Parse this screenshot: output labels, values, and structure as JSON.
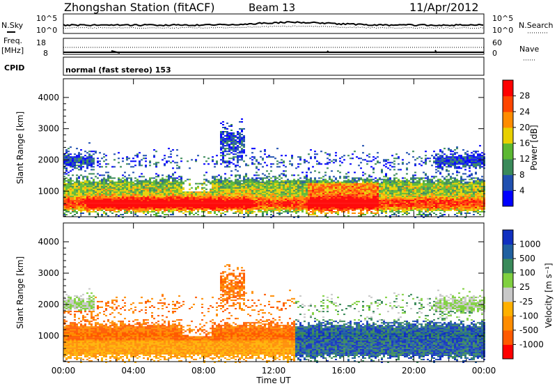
{
  "header": {
    "station": "Zhongshan Station (fitACF)",
    "beam": "Beam 13",
    "date": "11/Apr/2012"
  },
  "panels": {
    "noise": {
      "left_label": "N.Sky",
      "right_label": "N.Search",
      "left_ticks": [
        "10^5",
        "10^0"
      ],
      "right_ticks": [
        "10^5",
        "10^0"
      ]
    },
    "freq": {
      "left_label": "Freq.",
      "left_unit": "[MHz]",
      "right_label": "Nave",
      "left_ticks": [
        "18",
        "8"
      ],
      "right_ticks": [
        "60",
        "0"
      ]
    },
    "cpid": {
      "label": "CPID",
      "text": "normal (fast stereo) 153"
    }
  },
  "colors": {
    "power": [
      "#0000ff",
      "#2050b0",
      "#3a8a5a",
      "#5cb832",
      "#e8d000",
      "#ff8c00",
      "#ff4500",
      "#ff0000"
    ],
    "velocity": [
      "#ff0000",
      "#ff5a00",
      "#ff8c00",
      "#ffb000",
      "#c8c8c8",
      "#80d040",
      "#3a8a5a",
      "#2060a0",
      "#1030c0"
    ]
  },
  "chart_data": [
    {
      "type": "heatmap",
      "title": "Power",
      "ylabel": "Slant Range [km]",
      "ylim": [
        180,
        4600
      ],
      "y_ticks": [
        1000,
        2000,
        3000,
        4000
      ],
      "x_ticks": [
        "00:00",
        "04:00",
        "08:00",
        "12:00",
        "16:00",
        "20:00",
        "00:00"
      ],
      "colorbar": {
        "label": "Power [dB]",
        "ticks": [
          "4",
          "8",
          "12",
          "16",
          "20",
          "24",
          "28"
        ],
        "range": [
          0,
          32
        ]
      }
    },
    {
      "type": "heatmap",
      "title": "Velocity",
      "ylabel": "Slant Range [km]",
      "xlabel": "Time UT",
      "ylim": [
        180,
        4600
      ],
      "y_ticks": [
        1000,
        2000,
        3000,
        4000
      ],
      "x_ticks": [
        "00:00",
        "04:00",
        "08:00",
        "12:00",
        "16:00",
        "20:00",
        "00:00"
      ],
      "colorbar": {
        "label": "Velocity [m s⁻¹]",
        "ticks": [
          "-1000",
          "-500",
          "-100",
          "-25",
          "25",
          "100",
          "500",
          "1000"
        ]
      }
    }
  ]
}
